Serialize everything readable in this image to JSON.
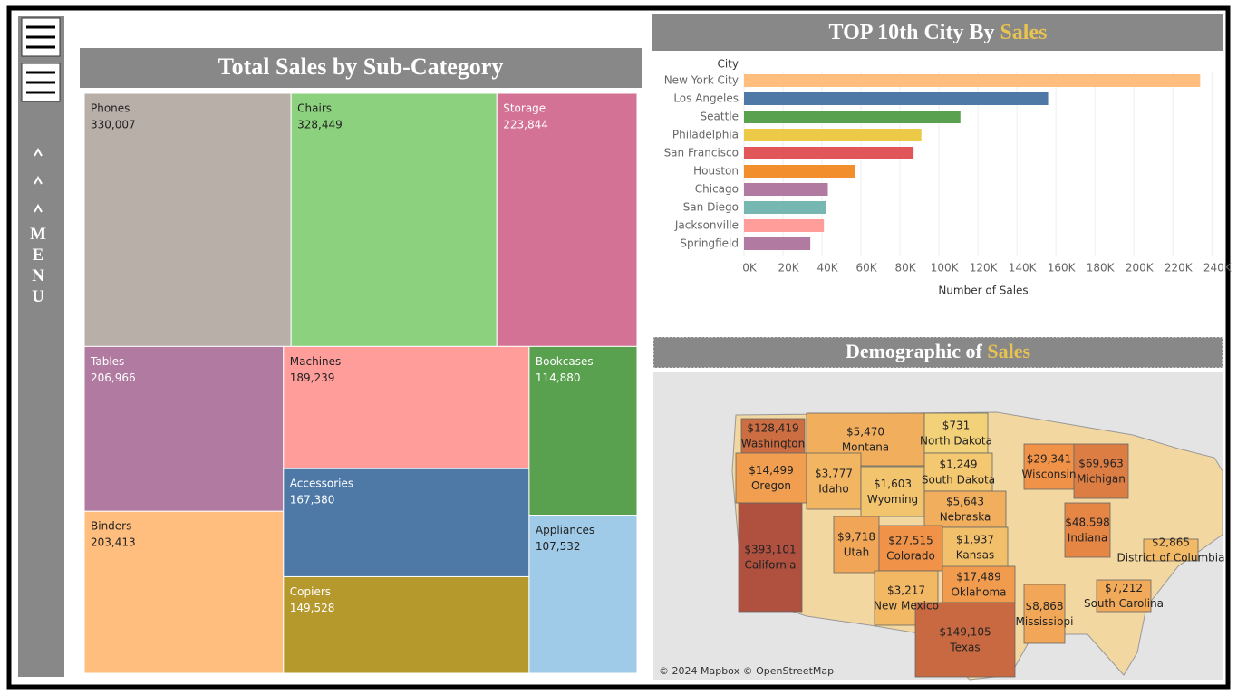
{
  "sidebar": {
    "menu": "MENU"
  },
  "chart_data": [
    {
      "type": "treemap",
      "title": "Total Sales by Sub-Category",
      "categories": [
        "Phones",
        "Chairs",
        "Storage",
        "Tables",
        "Binders",
        "Machines",
        "Accessories",
        "Copiers",
        "Bookcases",
        "Appliances"
      ],
      "values": [
        330007,
        328449,
        223844,
        206966,
        203413,
        189239,
        167380,
        149528,
        114880,
        107532
      ],
      "value_labels": [
        "330,007",
        "328,449",
        "223,844",
        "206,966",
        "203,413",
        "189,239",
        "167,380",
        "149,528",
        "114,880",
        "107,532"
      ],
      "colors": [
        "#b9afa9",
        "#8cd17d",
        "#d37295",
        "#b07aa1",
        "#ffbe7d",
        "#ff9d9a",
        "#4e79a7",
        "#b6992d",
        "#59a14f",
        "#a0cbe8"
      ]
    },
    {
      "type": "bar",
      "title": "TOP 10th City By",
      "title_highlight": "Sales",
      "ylabel": "City",
      "xlabel": "Number of Sales",
      "categories": [
        "New York City",
        "Los Angeles",
        "Seattle",
        "Philadelphia",
        "San Francisco",
        "Houston",
        "Chicago",
        "San Diego",
        "Jacksonville",
        "Springfield"
      ],
      "values": [
        234000,
        156000,
        111000,
        91000,
        87000,
        57000,
        43000,
        42000,
        41000,
        34000
      ],
      "colors": [
        "#ffbe7d",
        "#4e79a7",
        "#59a14f",
        "#edc948",
        "#e15759",
        "#f28e2b",
        "#b07aa1",
        "#76b7b2",
        "#ff9d9a",
        "#b07aa1"
      ],
      "xlim": [
        0,
        245000
      ],
      "xticks": [
        {
          "value": 0,
          "label": "0K"
        },
        {
          "value": 20000,
          "label": "20K"
        },
        {
          "value": 40000,
          "label": "40K"
        },
        {
          "value": 60000,
          "label": "60K"
        },
        {
          "value": 80000,
          "label": "80K"
        },
        {
          "value": 100000,
          "label": "100K"
        },
        {
          "value": 120000,
          "label": "120K"
        },
        {
          "value": 140000,
          "label": "140K"
        },
        {
          "value": 160000,
          "label": "160K"
        },
        {
          "value": 180000,
          "label": "180K"
        },
        {
          "value": 200000,
          "label": "200K"
        },
        {
          "value": 220000,
          "label": "220K"
        },
        {
          "value": 240000,
          "label": "240K"
        }
      ],
      "grid": true
    },
    {
      "type": "map",
      "title": "Demographic of",
      "title_highlight": "Sales",
      "attribution": "© 2024 Mapbox © OpenStreetMap",
      "categories": [
        "Washington",
        "Montana",
        "North Dakota",
        "Oregon",
        "Idaho",
        "Wyoming",
        "South Dakota",
        "Nebraska",
        "Wisconsin",
        "Michigan",
        "Utah",
        "Colorado",
        "Kansas",
        "California",
        "Indiana",
        "District of Columbia",
        "New Mexico",
        "Oklahoma",
        "Texas",
        "Mississippi",
        "South Carolina"
      ],
      "values": [
        128419,
        5470,
        731,
        14499,
        3777,
        1603,
        1249,
        5643,
        29341,
        69963,
        9718,
        27515,
        1937,
        393101,
        48598,
        2865,
        3217,
        17489,
        149105,
        8868,
        7212
      ],
      "value_labels": [
        "$128,419",
        "$5,470",
        "$731",
        "$14,499",
        "$3,777",
        "$1,603",
        "$1,249",
        "$5,643",
        "$29,341",
        "$69,963",
        "$9,718",
        "$27,515",
        "$1,937",
        "$393,101",
        "$48,598",
        "$2,865",
        "$3,217",
        "$17,489",
        "$149,105",
        "$8,868",
        "$7,212"
      ]
    }
  ]
}
